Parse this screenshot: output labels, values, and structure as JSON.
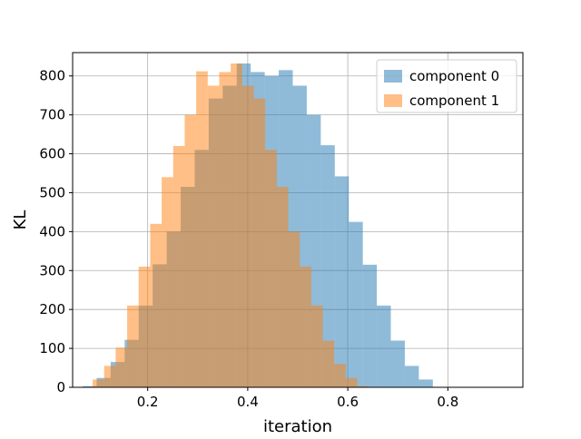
{
  "chart_data": {
    "type": "bar",
    "title": "",
    "xlabel": "iteration",
    "ylabel": "KL",
    "xlim": [
      0.05,
      0.95
    ],
    "ylim": [
      0,
      860
    ],
    "xticks": [
      "0.2",
      "0.4",
      "0.6",
      "0.8"
    ],
    "yticks": [
      "0",
      "100",
      "200",
      "300",
      "400",
      "500",
      "600",
      "700",
      "800"
    ],
    "grid": true,
    "legend_position": "top-right",
    "series": [
      {
        "name": "component 0",
        "color": "#1f77b4",
        "alpha": 0.5,
        "bins": [
          {
            "x0": 0.07,
            "x1": 0.098,
            "value": 3
          },
          {
            "x0": 0.098,
            "x1": 0.126,
            "value": 24
          },
          {
            "x0": 0.126,
            "x1": 0.154,
            "value": 65
          },
          {
            "x0": 0.154,
            "x1": 0.182,
            "value": 122
          },
          {
            "x0": 0.182,
            "x1": 0.21,
            "value": 210
          },
          {
            "x0": 0.21,
            "x1": 0.238,
            "value": 316
          },
          {
            "x0": 0.238,
            "x1": 0.266,
            "value": 400
          },
          {
            "x0": 0.266,
            "x1": 0.294,
            "value": 515
          },
          {
            "x0": 0.294,
            "x1": 0.322,
            "value": 610
          },
          {
            "x0": 0.322,
            "x1": 0.35,
            "value": 742
          },
          {
            "x0": 0.35,
            "x1": 0.378,
            "value": 775
          },
          {
            "x0": 0.378,
            "x1": 0.406,
            "value": 832
          },
          {
            "x0": 0.406,
            "x1": 0.434,
            "value": 810
          },
          {
            "x0": 0.434,
            "x1": 0.462,
            "value": 800
          },
          {
            "x0": 0.462,
            "x1": 0.49,
            "value": 815
          },
          {
            "x0": 0.49,
            "x1": 0.518,
            "value": 775
          },
          {
            "x0": 0.518,
            "x1": 0.546,
            "value": 700
          },
          {
            "x0": 0.546,
            "x1": 0.574,
            "value": 622
          },
          {
            "x0": 0.574,
            "x1": 0.602,
            "value": 542
          },
          {
            "x0": 0.602,
            "x1": 0.63,
            "value": 425
          },
          {
            "x0": 0.63,
            "x1": 0.658,
            "value": 315
          },
          {
            "x0": 0.658,
            "x1": 0.686,
            "value": 210
          },
          {
            "x0": 0.686,
            "x1": 0.714,
            "value": 120
          },
          {
            "x0": 0.714,
            "x1": 0.742,
            "value": 55
          },
          {
            "x0": 0.742,
            "x1": 0.77,
            "value": 20
          }
        ]
      },
      {
        "name": "component 1",
        "color": "#ff7f0e",
        "alpha": 0.5,
        "bins": [
          {
            "x0": 0.09,
            "x1": 0.113,
            "value": 20
          },
          {
            "x0": 0.113,
            "x1": 0.136,
            "value": 55
          },
          {
            "x0": 0.136,
            "x1": 0.159,
            "value": 102
          },
          {
            "x0": 0.159,
            "x1": 0.182,
            "value": 210
          },
          {
            "x0": 0.182,
            "x1": 0.205,
            "value": 310
          },
          {
            "x0": 0.205,
            "x1": 0.228,
            "value": 420
          },
          {
            "x0": 0.228,
            "x1": 0.251,
            "value": 540
          },
          {
            "x0": 0.251,
            "x1": 0.274,
            "value": 620
          },
          {
            "x0": 0.274,
            "x1": 0.297,
            "value": 700
          },
          {
            "x0": 0.297,
            "x1": 0.32,
            "value": 812
          },
          {
            "x0": 0.32,
            "x1": 0.343,
            "value": 775
          },
          {
            "x0": 0.343,
            "x1": 0.366,
            "value": 810
          },
          {
            "x0": 0.366,
            "x1": 0.389,
            "value": 832
          },
          {
            "x0": 0.389,
            "x1": 0.412,
            "value": 775
          },
          {
            "x0": 0.412,
            "x1": 0.435,
            "value": 742
          },
          {
            "x0": 0.435,
            "x1": 0.458,
            "value": 610
          },
          {
            "x0": 0.458,
            "x1": 0.481,
            "value": 515
          },
          {
            "x0": 0.481,
            "x1": 0.504,
            "value": 400
          },
          {
            "x0": 0.504,
            "x1": 0.527,
            "value": 310
          },
          {
            "x0": 0.527,
            "x1": 0.55,
            "value": 210
          },
          {
            "x0": 0.55,
            "x1": 0.573,
            "value": 120
          },
          {
            "x0": 0.573,
            "x1": 0.596,
            "value": 60
          },
          {
            "x0": 0.596,
            "x1": 0.619,
            "value": 24
          },
          {
            "x0": 0.619,
            "x1": 0.642,
            "value": 3
          }
        ]
      }
    ]
  }
}
